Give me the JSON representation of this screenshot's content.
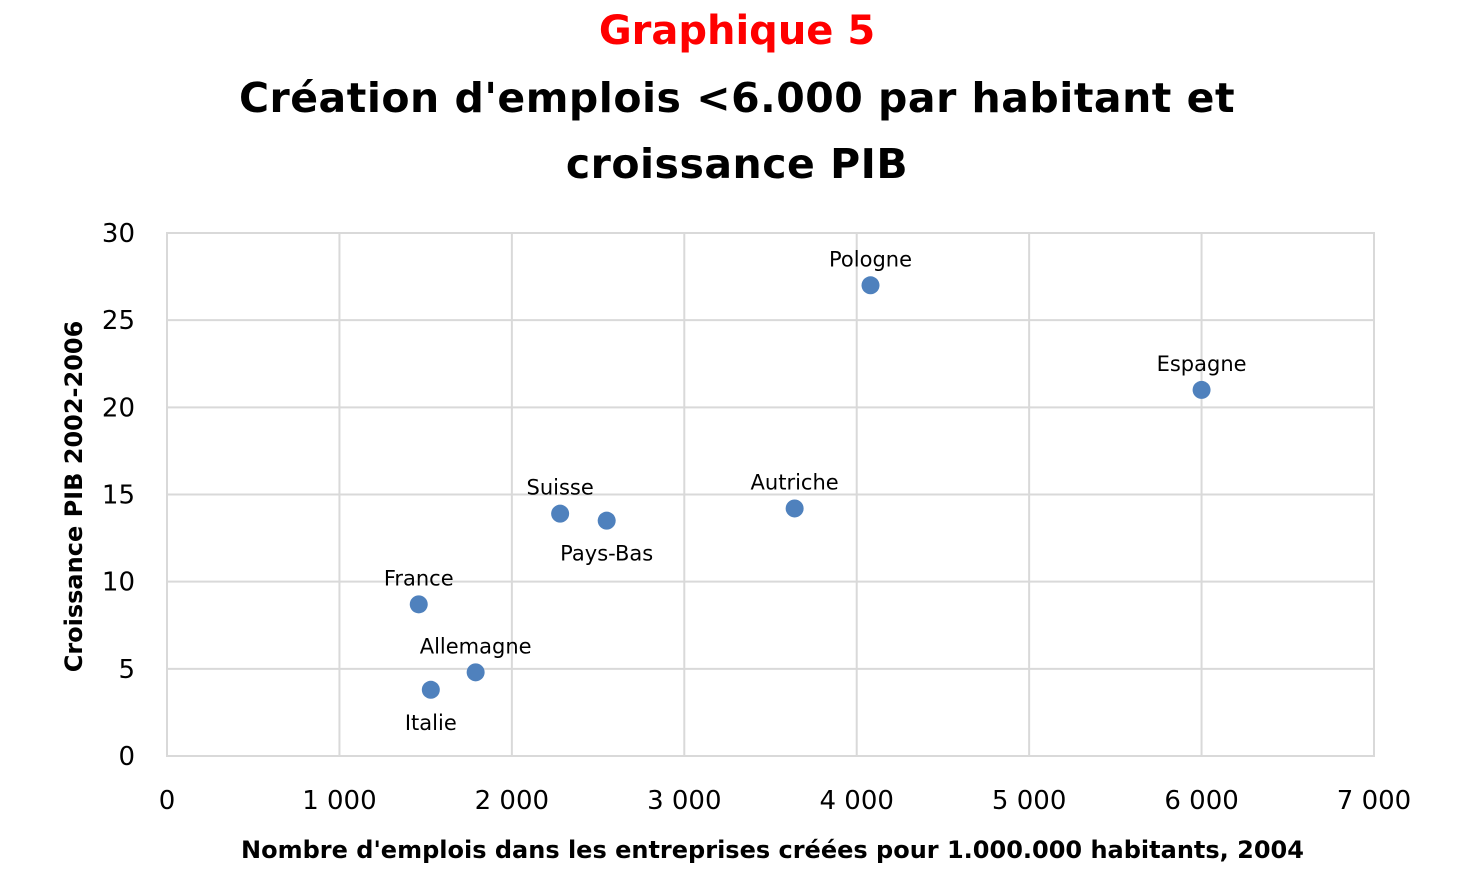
{
  "chart_data": {
    "type": "scatter",
    "number": "Graphique 5",
    "title_line1": "Création d'emplois <6.000 par habitant et",
    "title_line2": "croissance PIB",
    "xlabel": "Nombre d'emplois dans les entreprises créées pour 1.000.000 habitants, 2004",
    "ylabel": "Croissance PIB 2002-2006",
    "xlim": [
      0,
      7000
    ],
    "ylim": [
      0,
      30
    ],
    "xticks": [
      {
        "value": 0,
        "label": "0"
      },
      {
        "value": 1000,
        "label": "1 000"
      },
      {
        "value": 2000,
        "label": "2 000"
      },
      {
        "value": 3000,
        "label": "3 000"
      },
      {
        "value": 4000,
        "label": "4 000"
      },
      {
        "value": 5000,
        "label": "5 000"
      },
      {
        "value": 6000,
        "label": "6 000"
      },
      {
        "value": 7000,
        "label": "7 000"
      }
    ],
    "yticks": [
      {
        "value": 0,
        "label": "0"
      },
      {
        "value": 5,
        "label": "5"
      },
      {
        "value": 10,
        "label": "10"
      },
      {
        "value": 15,
        "label": "15"
      },
      {
        "value": 20,
        "label": "20"
      },
      {
        "value": 25,
        "label": "25"
      },
      {
        "value": 30,
        "label": "30"
      }
    ],
    "grid": true,
    "marker_color": "#4f81bd",
    "points": [
      {
        "label": "Pologne",
        "x": 4080,
        "y": 27.0,
        "label_pos": "above"
      },
      {
        "label": "Espagne",
        "x": 6000,
        "y": 21.0,
        "label_pos": "above"
      },
      {
        "label": "Suisse",
        "x": 2280,
        "y": 13.9,
        "label_pos": "above"
      },
      {
        "label": "Pays-Bas",
        "x": 2550,
        "y": 13.5,
        "label_pos": "below"
      },
      {
        "label": "Autriche",
        "x": 3640,
        "y": 14.2,
        "label_pos": "above"
      },
      {
        "label": "France",
        "x": 1460,
        "y": 8.7,
        "label_pos": "above"
      },
      {
        "label": "Allemagne",
        "x": 1790,
        "y": 4.8,
        "label_pos": "above"
      },
      {
        "label": "Italie",
        "x": 1530,
        "y": 3.8,
        "label_pos": "below"
      }
    ]
  }
}
